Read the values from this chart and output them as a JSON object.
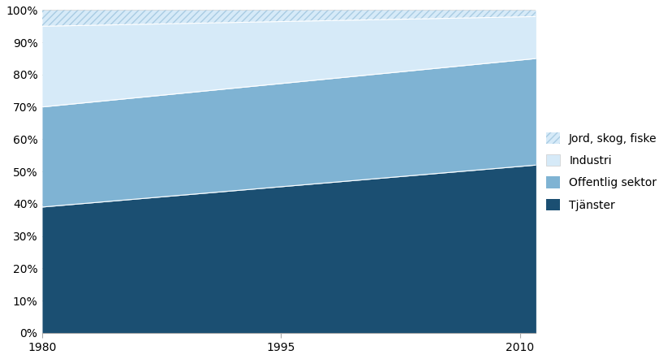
{
  "years": [
    1980,
    2011
  ],
  "tjanster": [
    0.39,
    0.52
  ],
  "offentlig": [
    0.31,
    0.33
  ],
  "industri": [
    0.25,
    0.13
  ],
  "jord": [
    0.05,
    0.02
  ],
  "colors": {
    "tjanster": "#1B4F72",
    "offentlig": "#7FB3D3",
    "industri": "#D6EAF8",
    "jord_base": "#D6EAF8"
  },
  "hatch_color": "#A9CCE3",
  "legend_labels": [
    "Jord, skog, fiske",
    "Industri",
    "Offentlig sektor",
    "Tjänster"
  ],
  "yticks": [
    0.0,
    0.1,
    0.2,
    0.3,
    0.4,
    0.5,
    0.6,
    0.7,
    0.8,
    0.9,
    1.0
  ],
  "xticks": [
    1980,
    1995,
    2010
  ],
  "xlim": [
    1980,
    2011
  ],
  "ylim": [
    0.0,
    1.0
  ]
}
